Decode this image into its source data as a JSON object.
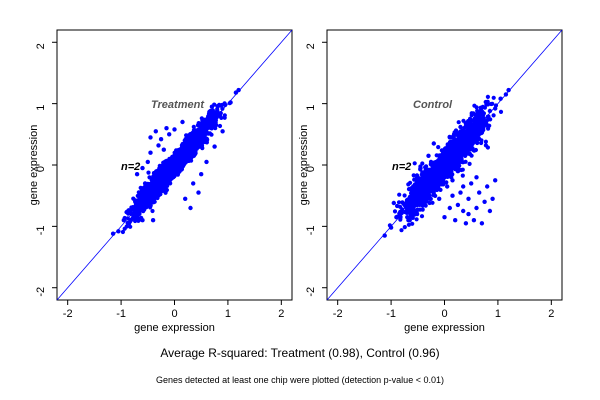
{
  "caption": "Average R-squared: Treatment (0.98), Control (0.96)",
  "footnote": "Genes detected at least one chip were plotted (detection p-value < 0.01)",
  "colors": {
    "points": "#0000ff",
    "diagonal": "#0000ff",
    "frame": "#000000",
    "panel_label": "#555555"
  },
  "chart_data": [
    {
      "type": "scatter",
      "title": "Treatment",
      "annotation": "n=2",
      "xlabel": "gene expression",
      "ylabel": "gene expression",
      "xlim": [
        -2.2,
        2.2
      ],
      "ylim": [
        -2.2,
        2.2
      ],
      "xticks": [
        -2,
        -1,
        0,
        1,
        2
      ],
      "yticks": [
        -2,
        -1,
        0,
        1,
        2
      ],
      "reference_line": {
        "slope": 1,
        "intercept": 0
      },
      "main_cloud": {
        "x_range": [
          -1.2,
          1.2
        ],
        "correlation": 0.98
      },
      "points": [
        [
          -1.15,
          -1.12
        ],
        [
          -1.05,
          -1.08
        ],
        [
          -0.95,
          -0.9
        ],
        [
          -0.85,
          -0.95
        ],
        [
          -0.75,
          -0.7
        ],
        [
          -0.6,
          -0.62
        ],
        [
          -0.5,
          -0.45
        ],
        [
          -0.35,
          -0.4
        ],
        [
          -0.2,
          -0.15
        ],
        [
          -0.05,
          -0.08
        ],
        [
          0.1,
          0.12
        ],
        [
          0.25,
          0.2
        ],
        [
          0.4,
          0.45
        ],
        [
          0.55,
          0.5
        ],
        [
          0.7,
          0.72
        ],
        [
          0.85,
          0.8
        ],
        [
          0.95,
          0.98
        ],
        [
          1.05,
          1.02
        ],
        [
          1.15,
          1.18
        ],
        [
          1.2,
          1.22
        ],
        [
          -0.7,
          -0.15
        ],
        [
          -0.5,
          0.05
        ],
        [
          -0.35,
          0.55
        ],
        [
          -0.25,
          0.42
        ],
        [
          -0.15,
          0.6
        ],
        [
          -0.1,
          0.5
        ],
        [
          -0.3,
          0.32
        ],
        [
          -0.2,
          0.25
        ],
        [
          -0.45,
          0.2
        ],
        [
          -0.6,
          -0.05
        ],
        [
          0.2,
          -0.55
        ],
        [
          0.35,
          -0.3
        ],
        [
          0.5,
          -0.15
        ],
        [
          0.15,
          0.7
        ],
        [
          0.0,
          0.58
        ],
        [
          0.6,
          0.05
        ],
        [
          0.75,
          0.3
        ],
        [
          0.9,
          0.55
        ],
        [
          -0.4,
          -0.9
        ],
        [
          -0.6,
          -0.9
        ],
        [
          -0.55,
          -0.3
        ],
        [
          -0.45,
          0.45
        ],
        [
          0.3,
          -0.7
        ],
        [
          0.45,
          -0.45
        ],
        [
          0.7,
          0.95
        ]
      ]
    },
    {
      "type": "scatter",
      "title": "Control",
      "annotation": "n=2",
      "xlabel": "gene expression",
      "ylabel": "gene expression",
      "xlim": [
        -2.2,
        2.2
      ],
      "ylim": [
        -2.2,
        2.2
      ],
      "xticks": [
        -2,
        -1,
        0,
        1,
        2
      ],
      "yticks": [
        -2,
        -1,
        0,
        1,
        2
      ],
      "reference_line": {
        "slope": 1,
        "intercept": 0
      },
      "main_cloud": {
        "x_range": [
          -1.15,
          1.2
        ],
        "correlation": 0.96
      },
      "points": [
        [
          -1.12,
          -1.15
        ],
        [
          -1.0,
          -1.02
        ],
        [
          -0.9,
          -0.85
        ],
        [
          -0.8,
          -0.78
        ],
        [
          -0.65,
          -0.7
        ],
        [
          -0.5,
          -0.48
        ],
        [
          -0.35,
          -0.3
        ],
        [
          -0.2,
          -0.22
        ],
        [
          -0.05,
          0.0
        ],
        [
          0.1,
          0.08
        ],
        [
          0.25,
          0.3
        ],
        [
          0.4,
          0.38
        ],
        [
          0.55,
          0.55
        ],
        [
          0.7,
          0.68
        ],
        [
          0.85,
          0.88
        ],
        [
          0.95,
          0.92
        ],
        [
          1.05,
          1.08
        ],
        [
          1.15,
          1.15
        ],
        [
          1.2,
          1.22
        ],
        [
          -0.95,
          -0.62
        ],
        [
          0.05,
          -0.35
        ],
        [
          0.15,
          -0.5
        ],
        [
          0.25,
          -0.65
        ],
        [
          0.35,
          -0.75
        ],
        [
          0.45,
          -0.55
        ],
        [
          0.55,
          -0.9
        ],
        [
          0.6,
          -0.7
        ],
        [
          0.65,
          -0.45
        ],
        [
          0.75,
          -0.6
        ],
        [
          0.8,
          -0.35
        ],
        [
          0.9,
          -0.55
        ],
        [
          0.95,
          -0.25
        ],
        [
          0.5,
          -0.3
        ],
        [
          0.3,
          -0.45
        ],
        [
          0.1,
          -0.7
        ],
        [
          0.0,
          -0.85
        ],
        [
          -0.1,
          -0.55
        ],
        [
          0.2,
          -0.9
        ],
        [
          0.4,
          -0.95
        ],
        [
          0.85,
          -0.75
        ],
        [
          0.7,
          -0.95
        ],
        [
          0.35,
          -0.35
        ],
        [
          0.6,
          -0.2
        ],
        [
          0.45,
          -0.8
        ],
        [
          0.15,
          -0.25
        ],
        [
          -0.3,
          0.15
        ],
        [
          -0.45,
          -0.05
        ],
        [
          -0.2,
          0.35
        ],
        [
          0.1,
          0.45
        ],
        [
          0.3,
          0.62
        ]
      ]
    }
  ]
}
